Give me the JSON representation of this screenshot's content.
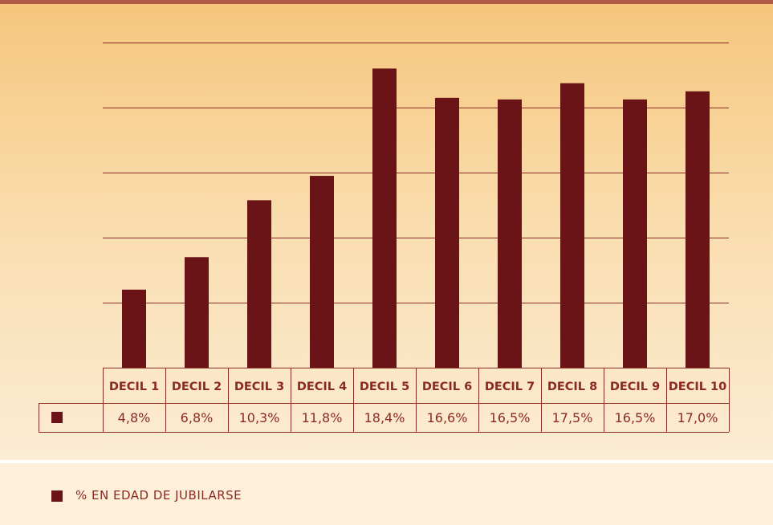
{
  "chart_data": {
    "type": "bar",
    "categories": [
      "DECIL 1",
      "DECIL 2",
      "DECIL 3",
      "DECIL 4",
      "DECIL 5",
      "DECIL 6",
      "DECIL 7",
      "DECIL 8",
      "DECIL 9",
      "DECIL 10"
    ],
    "value_labels": [
      "4,8%",
      "6,8%",
      "10,3%",
      "11,8%",
      "18,4%",
      "16,6%",
      "16,5%",
      "17,5%",
      "16,5%",
      "17,0%"
    ],
    "series": [
      {
        "name": "% EN EDAD DE JUBILARSE",
        "values": [
          4.8,
          6.8,
          10.3,
          11.8,
          18.4,
          16.6,
          16.5,
          17.5,
          16.5,
          17.0
        ]
      }
    ],
    "ylim": [
      0,
      20
    ],
    "ytick_interval": 4,
    "y_tick_labels_shown": false,
    "grid": true,
    "legend_position": "bottom-left",
    "colors": {
      "bar": "#6b1417",
      "text": "#8b2a22",
      "grid": "#8c2c25"
    }
  }
}
